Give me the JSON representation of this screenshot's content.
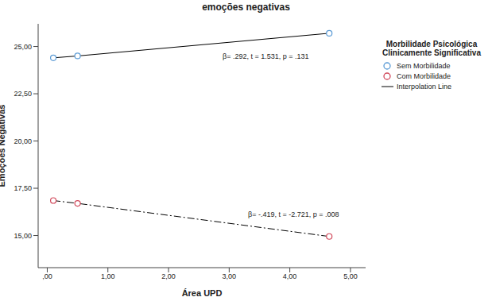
{
  "chart_data": {
    "type": "scatter",
    "title": "emoções negativas",
    "x_label": "Área UPD",
    "y_label": "Emoções Negativas",
    "legend_title": "Morbilidade Psicológica Clinicamente Significativa",
    "line_label": "Interpolation Line",
    "legend": "right",
    "grid": false,
    "x": [
      0.1,
      0.5,
      4.65
    ],
    "xlim": [
      -0.15,
      5.25
    ],
    "xticks": [
      {
        "value": 0,
        "label": ",00"
      },
      {
        "value": 1,
        "label": "1,00"
      },
      {
        "value": 2,
        "label": "2,00"
      },
      {
        "value": 3,
        "label": "3,00"
      },
      {
        "value": 4,
        "label": "4,00"
      },
      {
        "value": 5,
        "label": "5,00"
      }
    ],
    "ylim": [
      13.3,
      26.2
    ],
    "yticks": [
      {
        "value": 15,
        "label": "15,00"
      },
      {
        "value": 17.5,
        "label": "17,50"
      },
      {
        "value": 20,
        "label": "20,00"
      },
      {
        "value": 22.5,
        "label": "22,50"
      },
      {
        "value": 25,
        "label": "25,00"
      }
    ],
    "series": [
      {
        "name": "Sem Morbilidade",
        "color": "#5b9bd5",
        "marker": "circle",
        "line_style": "solid",
        "values": [
          24.4,
          24.5,
          25.7
        ]
      },
      {
        "name": "Com Morbilidade",
        "color": "#d1495b",
        "marker": "circle",
        "line_style": "dashdot",
        "values": [
          16.85,
          16.7,
          14.95
        ]
      }
    ],
    "annotations": [
      "β= .292, t = 1.531, p = .131",
      "β= -.419, t = -2.721, p = .008"
    ]
  }
}
